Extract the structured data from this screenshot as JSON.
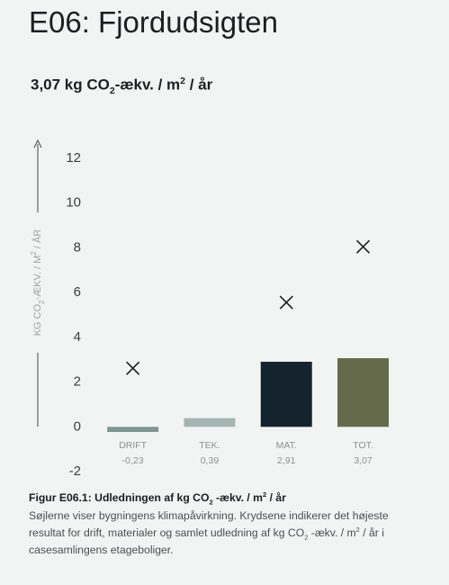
{
  "header": {
    "title": "E06: Fjordudsigten",
    "headline": [
      "3,07 kg CO",
      "2",
      "-ækv. / m",
      "2",
      " / år"
    ]
  },
  "chart_data": {
    "type": "bar",
    "y_label": [
      "KG CO",
      "2",
      "-ÆKV. / M",
      "2",
      " / ÅR"
    ],
    "categories": [
      "DRIFT",
      "TEK.",
      "MAT.",
      "TOT."
    ],
    "values": [
      -0.23,
      0.39,
      2.91,
      3.07
    ],
    "value_labels": [
      "-0,23",
      "0,39",
      "2,91",
      "3,07"
    ],
    "colors": [
      "#7f9692",
      "#a5b5b1",
      "#15232f",
      "#656a4b"
    ],
    "max_values": [
      2.62,
      null,
      5.56,
      8.05
    ],
    "ylim": [
      -2,
      12
    ],
    "yticks": [
      -2,
      0,
      2,
      4,
      6,
      8,
      10,
      12
    ]
  },
  "caption": {
    "title": [
      "Figur E06.1: Udledningen af kg CO",
      "2",
      " -ækv. / m",
      "2",
      " / år"
    ],
    "body": [
      "Søjlerne viser bygningens klimapåvirkning. Krydsene indikerer det højeste resultat for drift, materialer og samlet udledning af kg CO",
      "2",
      " -ækv. / m",
      "2",
      " / år i casesamlingens etageboliger."
    ]
  }
}
